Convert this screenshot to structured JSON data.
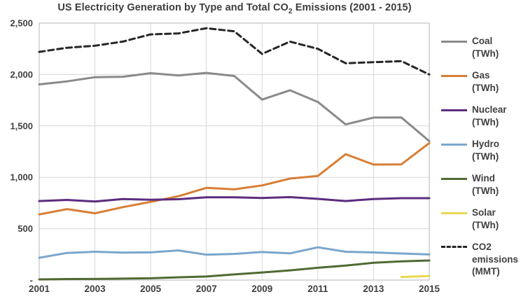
{
  "title": {
    "prefix": "US Electricity Generation by Type and Total CO",
    "subscript": "2",
    "suffix": " Emissions (2001 - 2015)"
  },
  "chart_data": {
    "type": "line",
    "title": "US Electricity Generation by Type and Total CO2 Emissions (2001 - 2015)",
    "x": [
      2001,
      2002,
      2003,
      2004,
      2005,
      2006,
      2007,
      2008,
      2009,
      2010,
      2011,
      2012,
      2013,
      2014,
      2015
    ],
    "xtick_labels": [
      "2001",
      "2003",
      "2005",
      "2007",
      "2009",
      "2011",
      "2013",
      "2015"
    ],
    "xtick_years": [
      2001,
      2003,
      2005,
      2007,
      2009,
      2011,
      2013,
      2015
    ],
    "ytick_values": [
      0,
      500,
      1000,
      1500,
      2000,
      2500
    ],
    "ytick_labels": [
      "-",
      "500",
      "1,000",
      "1,500",
      "2,000",
      "2,500"
    ],
    "xlim": [
      2001,
      2015
    ],
    "ylim": [
      0,
      2500
    ],
    "grid": true,
    "legend_position": "right",
    "axis_text_color": "#404040",
    "grid_color": "#d6d6d6",
    "series": [
      {
        "name": "Coal",
        "unit": "(TWh)",
        "label_lines": [
          "Coal",
          "(TWh)"
        ],
        "color": "#8a8a8a",
        "dash": false,
        "values": [
          1904,
          1933,
          1974,
          1978,
          2013,
          1991,
          2016,
          1986,
          1756,
          1847,
          1733,
          1514,
          1581,
          1582,
          1352
        ]
      },
      {
        "name": "Gas",
        "unit": "(TWh)",
        "label_lines": [
          "Gas",
          "(TWh)"
        ],
        "color": "#d87e36",
        "dash": false,
        "values": [
          639,
          691,
          650,
          710,
          761,
          816,
          897,
          883,
          921,
          988,
          1013,
          1225,
          1124,
          1126,
          1333
        ]
      },
      {
        "name": "Nuclear",
        "unit": "(TWh)",
        "label_lines": [
          "Nuclear",
          "(TWh)"
        ],
        "color": "#5b2c7f",
        "dash": false,
        "values": [
          769,
          780,
          764,
          788,
          782,
          787,
          806,
          806,
          799,
          807,
          790,
          769,
          789,
          797,
          797
        ]
      },
      {
        "name": "Hydro",
        "unit": "(TWh)",
        "label_lines": [
          "Hydro",
          "(TWh)"
        ],
        "color": "#7aa6cc",
        "dash": false,
        "values": [
          217,
          264,
          276,
          268,
          270,
          289,
          247,
          255,
          273,
          260,
          319,
          276,
          269,
          259,
          249
        ]
      },
      {
        "name": "Wind",
        "unit": "(TWh)",
        "label_lines": [
          "Wind",
          "(TWh)"
        ],
        "color": "#4f6a33",
        "dash": false,
        "values": [
          7,
          10,
          11,
          14,
          18,
          27,
          35,
          55,
          74,
          95,
          120,
          141,
          168,
          182,
          191
        ]
      },
      {
        "name": "Solar",
        "unit": "(TWh)",
        "label_lines": [
          "Solar",
          "(TWh)"
        ],
        "color": "#e8d94f",
        "dash": false,
        "values": [
          null,
          null,
          null,
          null,
          null,
          null,
          null,
          null,
          null,
          null,
          null,
          null,
          null,
          30,
          40
        ]
      },
      {
        "name": "CO2 emissions",
        "unit": "(MMT)",
        "label_lines": [
          "CO2",
          "emissions",
          "(MMT)"
        ],
        "color": "#262626",
        "dash": true,
        "values": [
          2220,
          2260,
          2280,
          2320,
          2390,
          2400,
          2450,
          2420,
          2200,
          2320,
          2250,
          2110,
          2120,
          2130,
          2000
        ]
      }
    ]
  }
}
